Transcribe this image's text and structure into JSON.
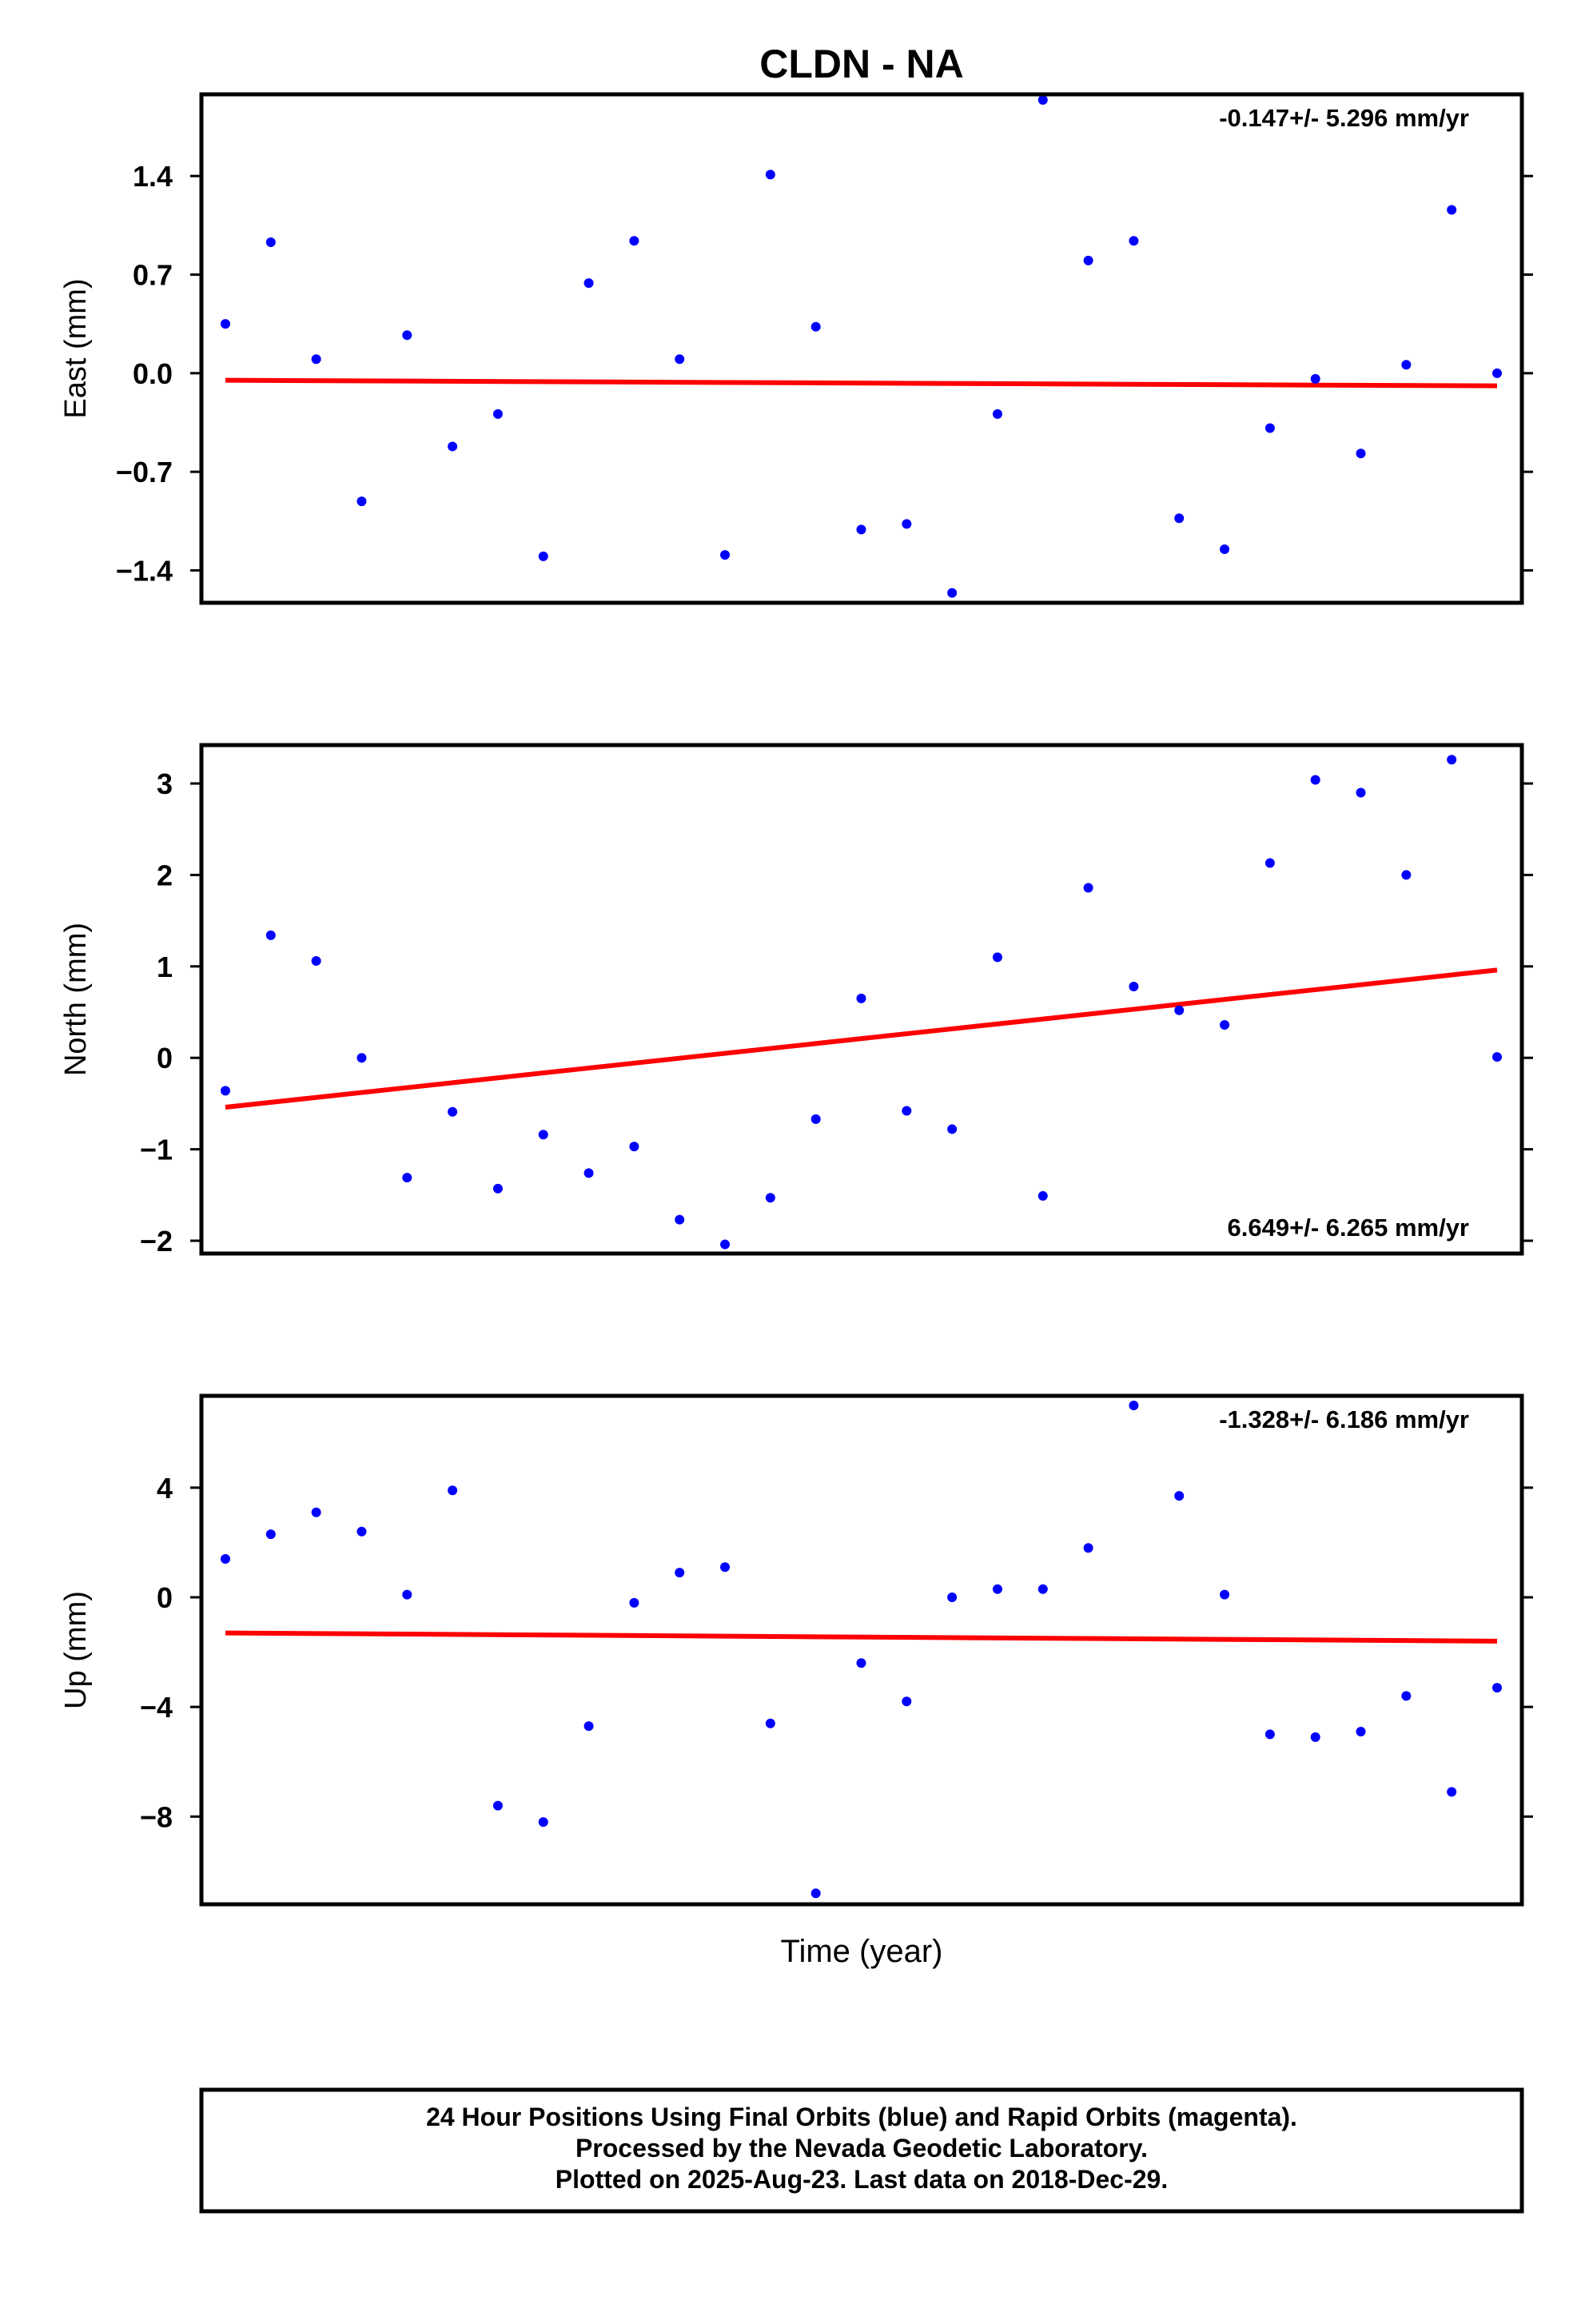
{
  "chart_data": {
    "type": "scatter",
    "title": "CLDN - NA",
    "xlabel": "Time (year)",
    "x_index": [
      1,
      2,
      3,
      4,
      5,
      6,
      7,
      8,
      9,
      10,
      11,
      12,
      13,
      14,
      15,
      16,
      17,
      18,
      19,
      20,
      21,
      22,
      23,
      24,
      25,
      26,
      27,
      28,
      29
    ],
    "panels": [
      {
        "name": "east",
        "ylabel": "East (mm)",
        "ylim": [
          -1.63,
          1.98
        ],
        "yticks": [
          -1.4,
          -0.7,
          0.0,
          0.7,
          1.4
        ],
        "ytick_labels": [
          "−1.4",
          "−0.7",
          "0.0",
          "0.7",
          "1.4"
        ],
        "rate_label": "-0.147+/- 5.296 mm/yr",
        "rate_position": "top-right",
        "values": [
          0.35,
          0.93,
          0.1,
          -0.91,
          0.27,
          -0.52,
          -0.29,
          -1.3,
          0.64,
          0.94,
          0.1,
          -1.29,
          1.41,
          0.33,
          -1.11,
          -1.07,
          -1.56,
          -0.29,
          1.94,
          0.8,
          0.94,
          -1.03,
          -1.25,
          -0.39,
          -0.04,
          -0.57,
          0.06,
          1.16,
          0.0
        ],
        "trend": [
          -0.05,
          -0.09
        ]
      },
      {
        "name": "north",
        "ylabel": "North (mm)",
        "ylim": [
          -2.14,
          3.42
        ],
        "yticks": [
          -2,
          -1,
          0,
          1,
          2,
          3
        ],
        "ytick_labels": [
          "−2",
          "−1",
          "0",
          "1",
          "2",
          "3"
        ],
        "rate_label": "6.649+/- 6.265 mm/yr",
        "rate_position": "bottom-right",
        "values": [
          -0.36,
          1.34,
          1.06,
          0.0,
          -1.31,
          -0.59,
          -1.43,
          -0.84,
          -1.26,
          -0.97,
          -1.77,
          -2.04,
          -1.53,
          -0.67,
          0.65,
          -0.58,
          -0.78,
          1.1,
          -1.51,
          1.86,
          0.78,
          0.52,
          0.36,
          2.13,
          3.04,
          2.9,
          2.0,
          3.26,
          0.01
        ],
        "trend": [
          -0.54,
          0.96
        ]
      },
      {
        "name": "up",
        "ylabel": "Up (mm)",
        "ylim": [
          -11.2,
          7.35
        ],
        "yticks": [
          -8,
          -4,
          0,
          4
        ],
        "ytick_labels": [
          "−8",
          "−4",
          "0",
          "4"
        ],
        "rate_label": "-1.328+/- 6.186 mm/yr",
        "rate_position": "top-right",
        "values": [
          1.4,
          2.3,
          3.1,
          2.4,
          0.1,
          3.9,
          -7.6,
          -8.2,
          -4.7,
          -0.2,
          0.9,
          1.1,
          -4.6,
          -10.8,
          -2.4,
          -3.8,
          0.0,
          0.3,
          0.3,
          1.8,
          7.0,
          3.7,
          0.1,
          -5.0,
          -5.1,
          -4.9,
          -3.6,
          -7.1,
          -3.3
        ],
        "trend": [
          -1.3,
          -1.6
        ]
      }
    ],
    "series": [
      {
        "name": "Final Orbits",
        "color": "#0000ff",
        "marker": "dot"
      },
      {
        "name": "Linear trend",
        "color": "#ff0000",
        "line": "solid"
      }
    ],
    "grid": false,
    "legend": "none",
    "footnote": [
      "24 Hour Positions Using Final Orbits (blue) and Rapid Orbits (magenta).",
      "Processed by the Nevada Geodetic Laboratory.",
      "Plotted on 2025-Aug-23. Last data on 2018-Dec-29."
    ]
  },
  "colors": {
    "point": "#0000ff",
    "trend": "#ff0000",
    "frame": "#000000",
    "background": "#ffffff"
  }
}
